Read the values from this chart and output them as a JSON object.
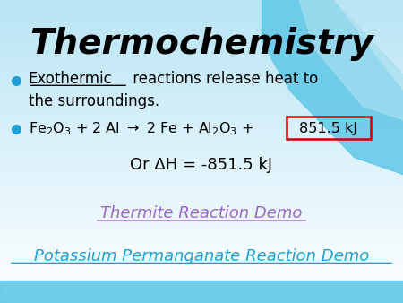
{
  "title": "Thermochemistry",
  "title_fontsize": 28,
  "title_color": "#000000",
  "title_style": "italic",
  "bullet_color": "#1EA0D5",
  "deltah_text": "Or ΔH = -851.5 kJ",
  "link1_text": "Thermite Reaction Demo",
  "link1_color": "#9966CC",
  "link2_text": "Potassium Permanganate Reaction Demo",
  "link2_color": "#1EA0D5",
  "box_edge_color": "#CC0000",
  "text_color": "#000000",
  "swoosh1_color": "#60C8E8",
  "swoosh2_color": "#A8DFF0",
  "bottom_bar_color": "#60C8E8"
}
